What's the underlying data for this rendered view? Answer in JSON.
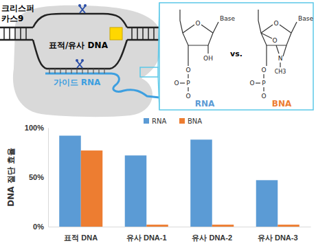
{
  "chart_data": {
    "type": "bar",
    "categories": [
      "표적 DNA",
      "유사 DNA-1",
      "유사 DNA-2",
      "유사 DNA-3"
    ],
    "series": [
      {
        "name": "RNA",
        "color": "#5b9bd5",
        "values": [
          92,
          72,
          88,
          47
        ]
      },
      {
        "name": "BNA",
        "color": "#ed7d31",
        "values": [
          77,
          2,
          2,
          2
        ]
      }
    ],
    "y_label": "DNA 절단 효율",
    "ylim": [
      0,
      100
    ],
    "yticks": [
      {
        "value": 0,
        "label": "0%"
      },
      {
        "value": 50,
        "label": "50%"
      },
      {
        "value": 100,
        "label": "100%"
      }
    ],
    "grid": false,
    "legend": "top"
  },
  "diagram": {
    "protein_label": [
      "크리스퍼",
      "카스9"
    ],
    "dna_label": "표적/유사 DNA",
    "guide_label": "가이드 RNA",
    "comparison": {
      "left": "RNA",
      "separator": "vs.",
      "right": "BNA"
    },
    "structures": [
      {
        "atoms": [
          "Base",
          "O",
          "OH",
          "O",
          "P",
          "O",
          "O"
        ]
      },
      {
        "atoms": [
          "Base",
          "O",
          "O",
          "N",
          "CH3",
          "O",
          "P",
          "O",
          "O"
        ]
      }
    ]
  }
}
